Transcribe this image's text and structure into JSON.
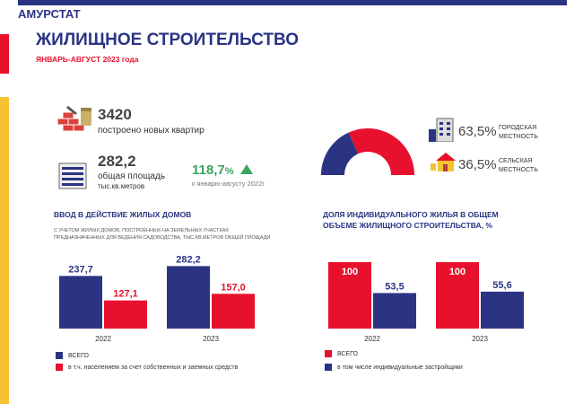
{
  "header": {
    "brand": "АМУРСТАТ",
    "title": "ЖИЛИЩНОЕ СТРОИТЕЛЬСТВО",
    "period": "ЯНВАРЬ-АВГУСТ  2023 года"
  },
  "stats": {
    "apartments_value": "3420",
    "apartments_label": "построено  новых  квартир",
    "area_value": "282,2",
    "area_label": "общая  площадь",
    "area_unit": "тыс.кв.метров",
    "growth_value": "118,7",
    "growth_unit": "%",
    "growth_note": "к  январю-августу  2022г"
  },
  "urban_rural": {
    "urban_pct": "63,5%",
    "urban_label_1": "ГОРОДСКАЯ",
    "urban_label_2": "МЕСТНОСТЬ",
    "rural_pct": "36,5%",
    "rural_label_1": "СЕЛЬСКАЯ",
    "rural_label_2": "МЕСТНОСТЬ"
  },
  "left_chart": {
    "title": "ВВОД В ДЕЙСТВИЕ ЖИЛЫХ ДОМОВ",
    "note": "С  УЧЕТОМ  ЖИЛЫХ ДОМОВ, ПОСТРОЕННЫХ НА ЗЕМЕЛЬНЫХ  УЧАСТКАХ ПРЕДНАЗНАЧЕННЫХ  ДЛЯ  ВЕДЕНИЯ САДОВОДСТВА, ТЫС.КВ.МЕТРОВ ОБЩЕЙ ПЛОЩАДИ",
    "legend_total": "ВСЕГО",
    "legend_part": "в т.ч. населением  за счет собственных и заемных  средств"
  },
  "right_chart": {
    "title_1": "ДОЛЯ ИНДИВИДУАЛЬНОГО ЖИЛЬЯ В ОБЩЕМ",
    "title_2": "ОБЪЕМЕ ЖИЛИЩНОГО СТРОИТЕЛЬСТВА, %",
    "legend_total": "ВСЕГО",
    "legend_part": "в том числе индивидуальные  застройщики"
  },
  "colors": {
    "navy": "#2b3483",
    "red": "#e8112d",
    "yellow": "#f6c232",
    "green": "#3aa55f"
  },
  "chart_data": [
    {
      "type": "bar",
      "title": "ВВОД В ДЕЙСТВИЕ ЖИЛЫХ ДОМОВ",
      "categories": [
        "2022",
        "2023"
      ],
      "series": [
        {
          "name": "ВСЕГО",
          "values": [
            237.7,
            282.2
          ],
          "labels": [
            "237,7",
            "282,2"
          ],
          "color": "#2b3483"
        },
        {
          "name": "в т.ч. населением  за счет собственных и заемных  средств",
          "values": [
            127.1,
            157.0
          ],
          "labels": [
            "127,1",
            "157,0"
          ],
          "color": "#e8112d"
        }
      ],
      "ylim": [
        0,
        300
      ]
    },
    {
      "type": "bar",
      "title": "ДОЛЯ ИНДИВИДУАЛЬНОГО ЖИЛЬЯ В ОБЩЕМ ОБЪЕМЕ ЖИЛИЩНОГО СТРОИТЕЛЬСТВА, %",
      "categories": [
        "2022",
        "2023"
      ],
      "series": [
        {
          "name": "ВСЕГО",
          "values": [
            100,
            100
          ],
          "labels": [
            "100",
            "100"
          ],
          "color": "#e8112d"
        },
        {
          "name": "в том числе индивидуальные  застройщики",
          "values": [
            53.5,
            55.6
          ],
          "labels": [
            "53,5",
            "55,6"
          ],
          "color": "#2b3483"
        }
      ],
      "ylim": [
        0,
        100
      ]
    },
    {
      "type": "pie",
      "categories": [
        "ГОРОДСКАЯ МЕСТНОСТЬ",
        "СЕЛЬСКАЯ МЕСТНОСТЬ"
      ],
      "values": [
        63.5,
        36.5
      ],
      "colors": [
        "#e8112d",
        "#2b3483"
      ]
    }
  ]
}
